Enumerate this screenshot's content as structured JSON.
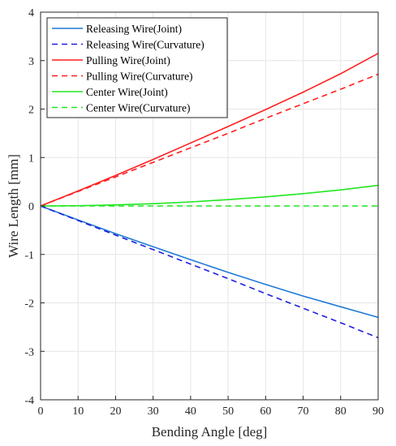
{
  "chart_data": {
    "type": "line",
    "xlabel": "Bending Angle [deg]",
    "ylabel": "Wire Length [mm]",
    "xlim": [
      0,
      90
    ],
    "ylim": [
      -4,
      4
    ],
    "xticks": [
      0,
      10,
      20,
      30,
      40,
      50,
      60,
      70,
      80,
      90
    ],
    "yticks": [
      -4,
      -3,
      -2,
      -1,
      0,
      1,
      2,
      3,
      4
    ],
    "grid": true,
    "legend_position": "top-left",
    "x": [
      0,
      10,
      20,
      30,
      40,
      50,
      60,
      70,
      80,
      90
    ],
    "series": [
      {
        "name": "Releasing Wire(Joint)",
        "color": "#1f7ad8",
        "dash": "solid",
        "values": [
          0,
          -0.29,
          -0.57,
          -0.84,
          -1.11,
          -1.37,
          -1.62,
          -1.86,
          -2.08,
          -2.3
        ]
      },
      {
        "name": "Releasing Wire(Curvature)",
        "color": "#1f1fe0",
        "dash": "dashed",
        "values": [
          0,
          -0.3,
          -0.6,
          -0.9,
          -1.2,
          -1.5,
          -1.81,
          -2.11,
          -2.41,
          -2.72
        ]
      },
      {
        "name": "Pulling Wire(Joint)",
        "color": "#ff1f1f",
        "dash": "solid",
        "values": [
          0,
          0.31,
          0.63,
          0.96,
          1.3,
          1.64,
          1.99,
          2.35,
          2.73,
          3.15
        ]
      },
      {
        "name": "Pulling Wire(Curvature)",
        "color": "#ff1f1f",
        "dash": "dashed",
        "values": [
          0,
          0.3,
          0.6,
          0.9,
          1.2,
          1.5,
          1.81,
          2.11,
          2.41,
          2.72
        ]
      },
      {
        "name": "Center Wire(Joint)",
        "color": "#22e622",
        "dash": "solid",
        "values": [
          0,
          0.005,
          0.021,
          0.047,
          0.083,
          0.13,
          0.187,
          0.254,
          0.331,
          0.425
        ]
      },
      {
        "name": "Center Wire(Curvature)",
        "color": "#22e622",
        "dash": "dashed",
        "values": [
          0,
          0,
          0,
          0,
          0,
          0,
          0,
          0,
          0,
          0
        ]
      }
    ]
  }
}
